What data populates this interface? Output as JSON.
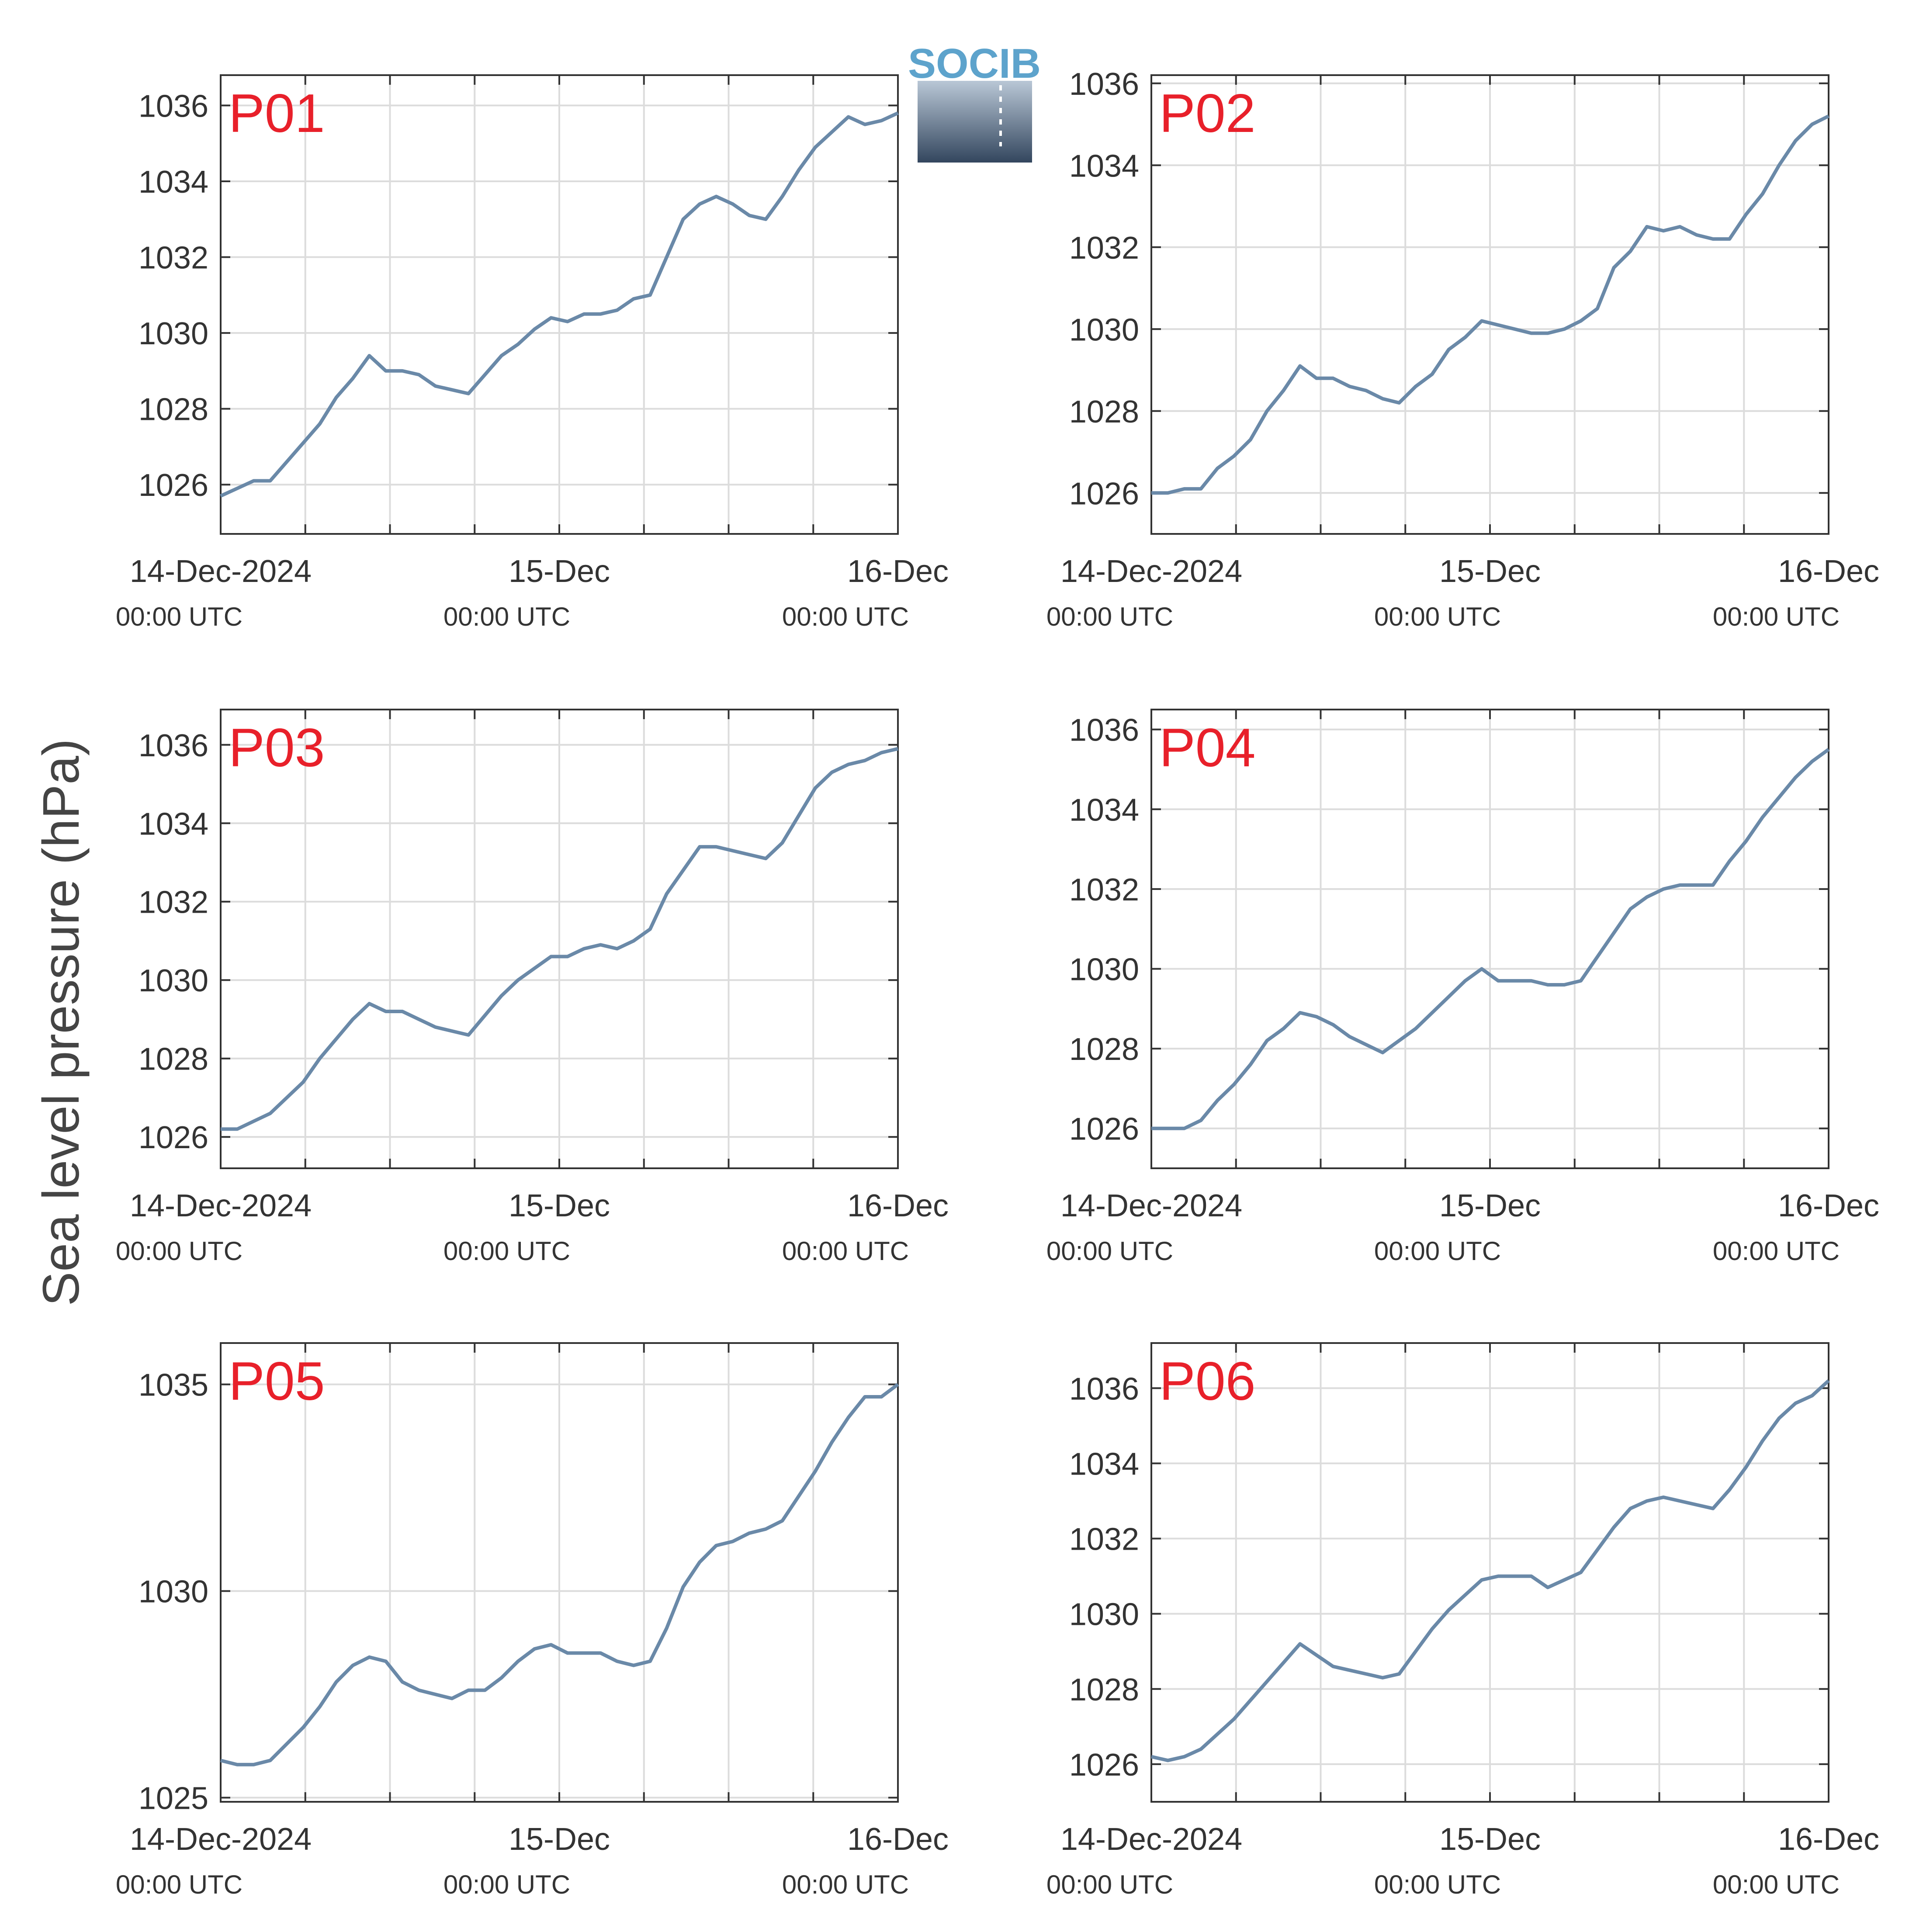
{
  "figure": {
    "ylabel": "Sea level pressure (hPa)",
    "logo_text": "SOCIB",
    "line_color": "#6a89a8",
    "label_color": "#e8202a",
    "axis_color": "#333333",
    "grid_color": "#dcdcdc",
    "x_tick_labels": [
      {
        "date": "14-Dec-2024",
        "time": "00:00 UTC"
      },
      {
        "date": "15-Dec",
        "time": "00:00 UTC"
      },
      {
        "date": "16-Dec",
        "time": "00:00 UTC"
      }
    ]
  },
  "chart_data": [
    {
      "type": "line",
      "name": "P01",
      "x_hours": [
        0,
        2,
        4,
        6,
        8,
        10,
        12,
        14,
        16,
        18,
        20,
        22,
        24,
        26,
        28,
        30,
        32,
        34,
        36,
        38,
        40,
        42,
        44,
        46,
        48,
        50,
        52,
        54,
        56,
        58,
        60,
        62,
        64,
        66,
        68,
        70,
        72
      ],
      "values": [
        1025.7,
        1025.9,
        1026.1,
        1026.1,
        1026.6,
        1027.1,
        1027.6,
        1028.3,
        1028.8,
        1029.4,
        1029.0,
        1029.0,
        1028.9,
        1028.6,
        1028.5,
        1028.4,
        1028.9,
        1029.4,
        1029.7,
        1030.1,
        1030.4,
        1030.3,
        1030.5,
        1030.5,
        1030.6,
        1030.9,
        1031.0,
        1032.0,
        1033.0,
        1033.4,
        1033.6,
        1033.4,
        1033.1,
        1033.0,
        1033.6,
        1034.3,
        1034.9
      ],
      "extra_end": [
        [
          74,
          1035.3
        ],
        [
          76,
          1035.7
        ],
        [
          78,
          1035.5
        ],
        [
          80,
          1035.6
        ],
        [
          82,
          1035.8
        ]
      ],
      "ylim": [
        1024.7,
        1036.8
      ],
      "yticks": [
        1026,
        1028,
        1030,
        1032,
        1034,
        1036
      ]
    },
    {
      "type": "line",
      "name": "P02",
      "x_hours": [
        0,
        2,
        4,
        6,
        8,
        10,
        12,
        14,
        16,
        18,
        20,
        22,
        24,
        26,
        28,
        30,
        32,
        34,
        36,
        38,
        40,
        42,
        44,
        46,
        48,
        50,
        52,
        54,
        56,
        58,
        60,
        62,
        64,
        66,
        68,
        70,
        72,
        74,
        76,
        78,
        80,
        82
      ],
      "values": [
        1026.0,
        1026.0,
        1026.1,
        1026.1,
        1026.6,
        1026.9,
        1027.3,
        1028.0,
        1028.5,
        1029.1,
        1028.8,
        1028.8,
        1028.6,
        1028.5,
        1028.3,
        1028.2,
        1028.6,
        1028.9,
        1029.5,
        1029.8,
        1030.2,
        1030.1,
        1030.0,
        1029.9,
        1029.9,
        1030.0,
        1030.2,
        1030.5,
        1031.5,
        1031.9,
        1032.5,
        1032.4,
        1032.5,
        1032.3,
        1032.2,
        1032.2,
        1032.8,
        1033.3,
        1034.0,
        1034.6,
        1035.0,
        1035.2
      ],
      "ylim": [
        1025.0,
        1036.2
      ],
      "yticks": [
        1026,
        1028,
        1030,
        1032,
        1034,
        1036
      ]
    },
    {
      "type": "line",
      "name": "P03",
      "x_hours": [
        0,
        2,
        4,
        6,
        8,
        10,
        12,
        14,
        16,
        18,
        20,
        22,
        24,
        26,
        28,
        30,
        32,
        34,
        36,
        38,
        40,
        42,
        44,
        46,
        48,
        50,
        52,
        54,
        56,
        58,
        60,
        62,
        64,
        66,
        68,
        70,
        72,
        74,
        76,
        78,
        80,
        82
      ],
      "values": [
        1026.2,
        1026.2,
        1026.4,
        1026.6,
        1027.0,
        1027.4,
        1028.0,
        1028.5,
        1029.0,
        1029.4,
        1029.2,
        1029.2,
        1029.0,
        1028.8,
        1028.7,
        1028.6,
        1029.1,
        1029.6,
        1030.0,
        1030.3,
        1030.6,
        1030.6,
        1030.8,
        1030.9,
        1030.8,
        1031.0,
        1031.3,
        1032.2,
        1032.8,
        1033.4,
        1033.4,
        1033.3,
        1033.2,
        1033.1,
        1033.5,
        1034.2,
        1034.9,
        1035.3,
        1035.5,
        1035.6,
        1035.8,
        1035.9
      ],
      "ylim": [
        1025.2,
        1036.9
      ],
      "yticks": [
        1026,
        1028,
        1030,
        1032,
        1034,
        1036
      ]
    },
    {
      "type": "line",
      "name": "P04",
      "x_hours": [
        0,
        2,
        4,
        6,
        8,
        10,
        12,
        14,
        16,
        18,
        20,
        22,
        24,
        26,
        28,
        30,
        32,
        34,
        36,
        38,
        40,
        42,
        44,
        46,
        48,
        50,
        52,
        54,
        56,
        58,
        60,
        62,
        64,
        66,
        68,
        70,
        72,
        74,
        76,
        78,
        80,
        82
      ],
      "values": [
        1026.0,
        1026.0,
        1026.0,
        1026.2,
        1026.7,
        1027.1,
        1027.6,
        1028.2,
        1028.5,
        1028.9,
        1028.8,
        1028.6,
        1028.3,
        1028.1,
        1027.9,
        1028.2,
        1028.5,
        1028.9,
        1029.3,
        1029.7,
        1030.0,
        1029.7,
        1029.7,
        1029.7,
        1029.6,
        1029.6,
        1029.7,
        1030.3,
        1030.9,
        1031.5,
        1031.8,
        1032.0,
        1032.1,
        1032.1,
        1032.1,
        1032.7,
        1033.2,
        1033.8,
        1034.3,
        1034.8,
        1035.2,
        1035.5
      ],
      "ylim": [
        1025.0,
        1036.5
      ],
      "yticks": [
        1026,
        1028,
        1030,
        1032,
        1034,
        1036
      ]
    },
    {
      "type": "line",
      "name": "P05",
      "x_hours": [
        0,
        2,
        4,
        6,
        8,
        10,
        12,
        14,
        16,
        18,
        20,
        22,
        24,
        26,
        28,
        30,
        32,
        34,
        36,
        38,
        40,
        42,
        44,
        46,
        48,
        50,
        52,
        54,
        56,
        58,
        60,
        62,
        64,
        66,
        68,
        70,
        72,
        74,
        76,
        78,
        80,
        82
      ],
      "values": [
        1025.9,
        1025.8,
        1025.8,
        1025.9,
        1026.3,
        1026.7,
        1027.2,
        1027.8,
        1028.2,
        1028.4,
        1028.3,
        1027.8,
        1027.6,
        1027.5,
        1027.4,
        1027.6,
        1027.6,
        1027.9,
        1028.3,
        1028.6,
        1028.7,
        1028.5,
        1028.5,
        1028.5,
        1028.3,
        1028.2,
        1028.3,
        1029.1,
        1030.1,
        1030.7,
        1031.1,
        1031.2,
        1031.4,
        1031.5,
        1031.7,
        1032.3,
        1032.9,
        1033.6,
        1034.2,
        1034.7,
        1034.7,
        1035.0
      ],
      "ylim": [
        1024.9,
        1036.0
      ],
      "yticks": [
        1025,
        1030,
        1035
      ]
    },
    {
      "type": "line",
      "name": "P06",
      "x_hours": [
        0,
        2,
        4,
        6,
        8,
        10,
        12,
        14,
        16,
        18,
        20,
        22,
        24,
        26,
        28,
        30,
        32,
        34,
        36,
        38,
        40,
        42,
        44,
        46,
        48,
        50,
        52,
        54,
        56,
        58,
        60,
        62,
        64,
        66,
        68,
        70,
        72,
        74,
        76,
        78,
        80,
        82
      ],
      "values": [
        1026.2,
        1026.1,
        1026.2,
        1026.4,
        1026.8,
        1027.2,
        1027.7,
        1028.2,
        1028.7,
        1029.2,
        1028.9,
        1028.6,
        1028.5,
        1028.4,
        1028.3,
        1028.4,
        1029.0,
        1029.6,
        1030.1,
        1030.5,
        1030.9,
        1031.0,
        1031.0,
        1031.0,
        1030.7,
        1030.9,
        1031.1,
        1031.7,
        1032.3,
        1032.8,
        1033.0,
        1033.1,
        1033.0,
        1032.9,
        1032.8,
        1033.3,
        1033.9,
        1034.6,
        1035.2,
        1035.6,
        1035.8,
        1036.2
      ],
      "ylim": [
        1025.0,
        1037.2
      ],
      "yticks": [
        1026,
        1028,
        1030,
        1032,
        1034,
        1036
      ]
    }
  ]
}
